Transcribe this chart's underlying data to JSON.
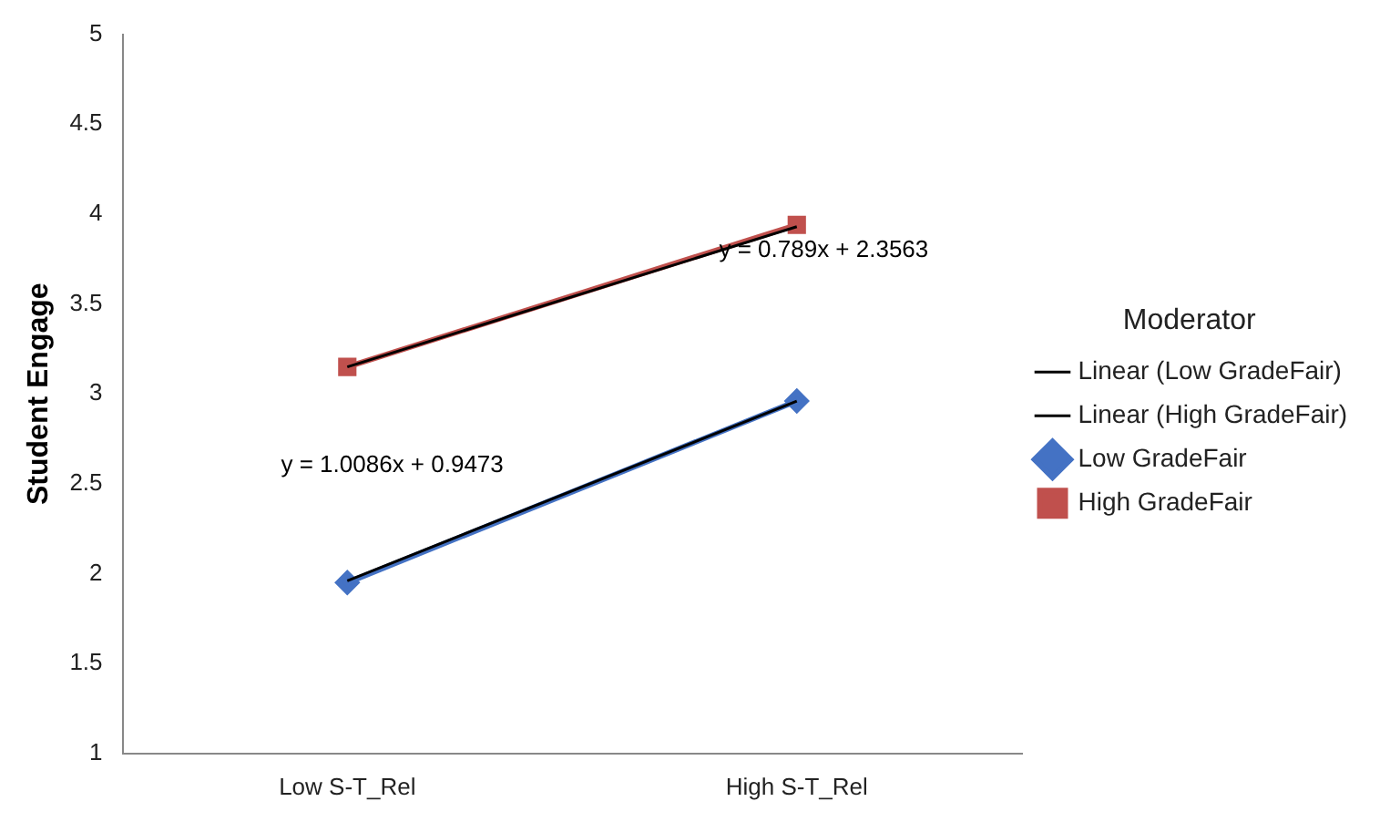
{
  "chart_data": {
    "type": "line",
    "ylabel": "Student Engage",
    "legend_title": "Moderator",
    "legend": "right",
    "grid": false,
    "categories": [
      "Low S-T_Rel",
      "High S-T_Rel"
    ],
    "ylim": [
      1,
      5
    ],
    "yticks": [
      1,
      1.5,
      2,
      2.5,
      3,
      3.5,
      4,
      4.5,
      5
    ],
    "series": [
      {
        "name": "Low GradeFair",
        "color": "#4472c4",
        "values": [
          1.95,
          2.96
        ],
        "marker": "diamond"
      },
      {
        "name": "High GradeFair",
        "color": "#c0504d",
        "values": [
          3.15,
          3.94
        ],
        "marker": "square"
      },
      {
        "name": "Linear (Low GradeFair)",
        "color": "#000000",
        "values": [
          1.96,
          2.96
        ],
        "marker": "none"
      },
      {
        "name": "Linear (High GradeFair)",
        "color": "#000000",
        "values": [
          3.15,
          3.93
        ],
        "marker": "none"
      }
    ],
    "annotations": [
      "y = 0.789x + 2.3563",
      "y = 1.0086x + 0.9473"
    ]
  }
}
